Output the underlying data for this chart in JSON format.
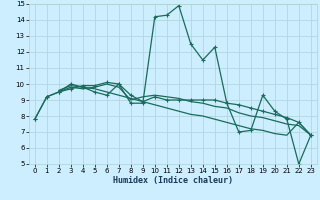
{
  "xlabel": "Humidex (Indice chaleur)",
  "background_color": "#cceeff",
  "line_color": "#1a6b5a",
  "grid_color": "#aad4d4",
  "ylim": [
    5,
    15
  ],
  "xlim": [
    -0.5,
    23.5
  ],
  "yticks": [
    5,
    6,
    7,
    8,
    9,
    10,
    11,
    12,
    13,
    14,
    15
  ],
  "xticks": [
    0,
    1,
    2,
    3,
    4,
    5,
    6,
    7,
    8,
    9,
    10,
    11,
    12,
    13,
    14,
    15,
    16,
    17,
    18,
    19,
    20,
    21,
    22,
    23
  ],
  "line_main": [
    [
      0,
      7.8
    ],
    [
      1,
      9.2
    ],
    [
      2,
      9.5
    ],
    [
      3,
      10.0
    ],
    [
      4,
      9.8
    ],
    [
      5,
      9.5
    ],
    [
      6,
      9.3
    ],
    [
      7,
      10.0
    ],
    [
      8,
      8.8
    ],
    [
      9,
      8.8
    ],
    [
      10,
      14.2
    ],
    [
      11,
      14.3
    ],
    [
      12,
      14.9
    ],
    [
      13,
      12.5
    ],
    [
      14,
      11.5
    ],
    [
      15,
      12.3
    ],
    [
      16,
      8.8
    ],
    [
      17,
      7.0
    ],
    [
      18,
      7.1
    ],
    [
      19,
      9.3
    ],
    [
      20,
      8.3
    ],
    [
      21,
      7.8
    ],
    [
      22,
      5.0
    ],
    [
      23,
      6.8
    ]
  ],
  "line_flat": [
    [
      0,
      7.8
    ],
    [
      1,
      9.2
    ],
    [
      2,
      9.5
    ],
    [
      3,
      9.7
    ],
    [
      4,
      9.9
    ],
    [
      5,
      9.9
    ],
    [
      6,
      10.1
    ],
    [
      7,
      10.0
    ],
    [
      8,
      9.3
    ],
    [
      9,
      8.9
    ],
    [
      10,
      9.2
    ],
    [
      11,
      9.0
    ],
    [
      12,
      9.0
    ],
    [
      13,
      9.0
    ],
    [
      14,
      9.0
    ],
    [
      15,
      9.0
    ],
    [
      16,
      8.8
    ],
    [
      17,
      8.7
    ],
    [
      18,
      8.5
    ],
    [
      19,
      8.3
    ],
    [
      20,
      8.1
    ],
    [
      21,
      7.9
    ],
    [
      22,
      7.6
    ],
    [
      23,
      6.8
    ]
  ],
  "line_decline1": [
    [
      2,
      9.5
    ],
    [
      3,
      9.8
    ],
    [
      4,
      9.7
    ],
    [
      5,
      9.8
    ],
    [
      6,
      10.0
    ],
    [
      7,
      9.8
    ],
    [
      8,
      9.0
    ],
    [
      9,
      9.2
    ],
    [
      10,
      9.3
    ],
    [
      11,
      9.2
    ],
    [
      12,
      9.1
    ],
    [
      13,
      8.9
    ],
    [
      14,
      8.8
    ],
    [
      15,
      8.6
    ],
    [
      16,
      8.5
    ],
    [
      17,
      8.2
    ],
    [
      18,
      8.0
    ],
    [
      19,
      7.9
    ],
    [
      20,
      7.7
    ],
    [
      21,
      7.5
    ],
    [
      22,
      7.4
    ],
    [
      23,
      6.8
    ]
  ],
  "line_decline2": [
    [
      2,
      9.6
    ],
    [
      3,
      9.9
    ],
    [
      4,
      9.8
    ],
    [
      5,
      9.7
    ],
    [
      6,
      9.5
    ],
    [
      7,
      9.3
    ],
    [
      8,
      9.1
    ],
    [
      9,
      8.9
    ],
    [
      10,
      8.7
    ],
    [
      11,
      8.5
    ],
    [
      12,
      8.3
    ],
    [
      13,
      8.1
    ],
    [
      14,
      8.0
    ],
    [
      15,
      7.8
    ],
    [
      16,
      7.6
    ],
    [
      17,
      7.4
    ],
    [
      18,
      7.2
    ],
    [
      19,
      7.1
    ],
    [
      20,
      6.9
    ],
    [
      21,
      6.8
    ],
    [
      22,
      7.6
    ],
    [
      23,
      6.8
    ]
  ]
}
